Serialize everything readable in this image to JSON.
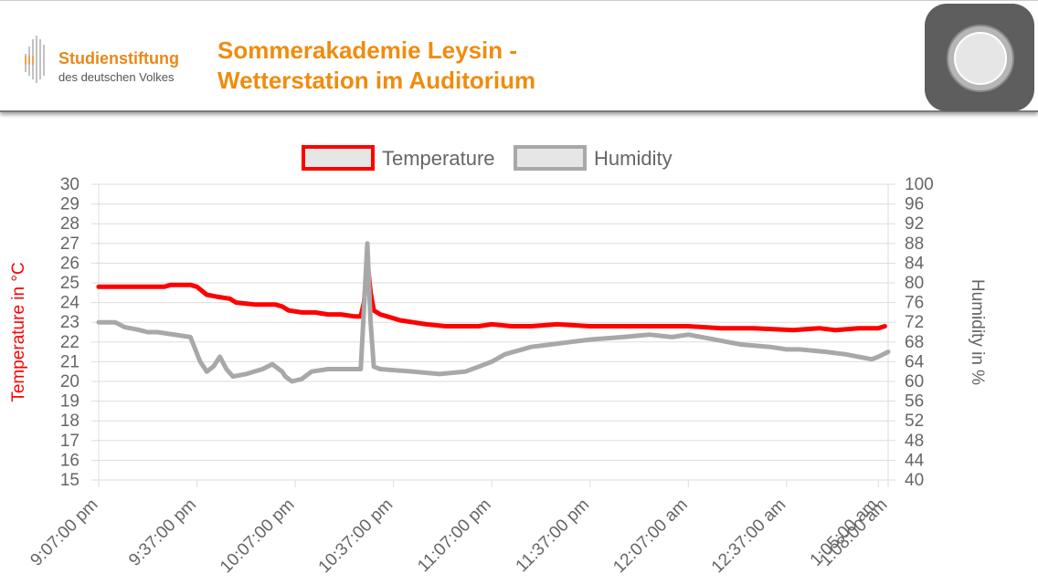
{
  "header": {
    "logo_name": "Studienstiftung",
    "logo_sub": "des deutschen Volkes",
    "title_line1": "Sommerakademie Leysin -",
    "title_line2": "Wetterstation im Auditorium"
  },
  "home_button": {
    "icon": "home-button-icon"
  },
  "colors": {
    "accent": "#ef8c0e",
    "temperature": "#ff0000",
    "humidity": "#a8a8a8"
  },
  "chart_data": {
    "type": "line",
    "legend_position": "top",
    "grid": true,
    "ylabel_left": "Temperature in °C",
    "ylabel_right": "Humidity in %",
    "y_left_range": [
      15,
      30
    ],
    "y_right_range": [
      40,
      100
    ],
    "y_left_ticks": [
      "15",
      "16",
      "17",
      "18",
      "19",
      "20",
      "21",
      "22",
      "23",
      "24",
      "25",
      "26",
      "27",
      "28",
      "29",
      "30"
    ],
    "y_right_ticks": [
      "40",
      "44",
      "48",
      "52",
      "56",
      "60",
      "64",
      "68",
      "72",
      "76",
      "80",
      "84",
      "88",
      "92",
      "96",
      "100"
    ],
    "x_tick_labels": [
      "9:07:00 pm",
      "9:37:00 pm",
      "10:07:00 pm",
      "10:37:00 pm",
      "11:07:00 pm",
      "11:37:00 pm",
      "12:07:00 am",
      "12:37:00 am",
      "1:05:00 am",
      "1:08:00 am"
    ],
    "x_tick_minutes": [
      0,
      30,
      60,
      90,
      120,
      150,
      180,
      210,
      238,
      241
    ],
    "series": [
      {
        "name": "Temperature",
        "axis": "left",
        "color": "#ff0000",
        "points": [
          [
            0,
            24.8
          ],
          [
            10,
            24.8
          ],
          [
            20,
            24.8
          ],
          [
            22,
            24.9
          ],
          [
            28,
            24.9
          ],
          [
            30,
            24.8
          ],
          [
            33,
            24.4
          ],
          [
            36,
            24.3
          ],
          [
            40,
            24.2
          ],
          [
            42,
            24.0
          ],
          [
            48,
            23.9
          ],
          [
            54,
            23.9
          ],
          [
            56,
            23.8
          ],
          [
            58,
            23.6
          ],
          [
            62,
            23.5
          ],
          [
            66,
            23.5
          ],
          [
            70,
            23.4
          ],
          [
            74,
            23.4
          ],
          [
            78,
            23.3
          ],
          [
            80,
            23.3
          ],
          [
            81,
            24.0
          ],
          [
            82,
            26.1
          ],
          [
            83,
            24.5
          ],
          [
            84,
            23.6
          ],
          [
            86,
            23.4
          ],
          [
            88,
            23.3
          ],
          [
            92,
            23.1
          ],
          [
            96,
            23.0
          ],
          [
            100,
            22.9
          ],
          [
            106,
            22.8
          ],
          [
            116,
            22.8
          ],
          [
            120,
            22.9
          ],
          [
            126,
            22.8
          ],
          [
            132,
            22.8
          ],
          [
            140,
            22.9
          ],
          [
            150,
            22.8
          ],
          [
            160,
            22.8
          ],
          [
            170,
            22.8
          ],
          [
            180,
            22.8
          ],
          [
            190,
            22.7
          ],
          [
            200,
            22.7
          ],
          [
            212,
            22.6
          ],
          [
            220,
            22.7
          ],
          [
            225,
            22.6
          ],
          [
            232,
            22.7
          ],
          [
            238,
            22.7
          ],
          [
            240,
            22.8
          ]
        ]
      },
      {
        "name": "Humidity",
        "axis": "right",
        "color": "#a8a8a8",
        "points": [
          [
            0,
            72
          ],
          [
            5,
            72
          ],
          [
            8,
            71
          ],
          [
            12,
            70.5
          ],
          [
            15,
            70
          ],
          [
            18,
            70
          ],
          [
            28,
            69
          ],
          [
            31,
            64
          ],
          [
            33,
            62
          ],
          [
            35,
            63
          ],
          [
            37,
            65
          ],
          [
            39,
            62.5
          ],
          [
            41,
            61
          ],
          [
            45,
            61.5
          ],
          [
            50,
            62.5
          ],
          [
            53,
            63.5
          ],
          [
            56,
            62
          ],
          [
            57,
            61
          ],
          [
            59,
            60
          ],
          [
            62,
            60.5
          ],
          [
            65,
            62
          ],
          [
            70,
            62.5
          ],
          [
            76,
            62.5
          ],
          [
            80,
            62.5
          ],
          [
            81,
            75
          ],
          [
            82,
            88
          ],
          [
            83,
            72
          ],
          [
            84,
            63
          ],
          [
            86,
            62.5
          ],
          [
            96,
            62
          ],
          [
            104,
            61.5
          ],
          [
            112,
            62
          ],
          [
            116,
            63
          ],
          [
            120,
            64
          ],
          [
            124,
            65.5
          ],
          [
            132,
            67
          ],
          [
            138,
            67.5
          ],
          [
            144,
            68
          ],
          [
            150,
            68.5
          ],
          [
            160,
            69
          ],
          [
            168,
            69.5
          ],
          [
            175,
            69
          ],
          [
            180,
            69.5
          ],
          [
            188,
            68.5
          ],
          [
            196,
            67.5
          ],
          [
            205,
            67
          ],
          [
            210,
            66.5
          ],
          [
            214,
            66.5
          ],
          [
            222,
            66
          ],
          [
            228,
            65.5
          ],
          [
            232,
            65
          ],
          [
            236,
            64.5
          ],
          [
            238,
            65
          ],
          [
            241,
            66
          ]
        ]
      }
    ]
  }
}
